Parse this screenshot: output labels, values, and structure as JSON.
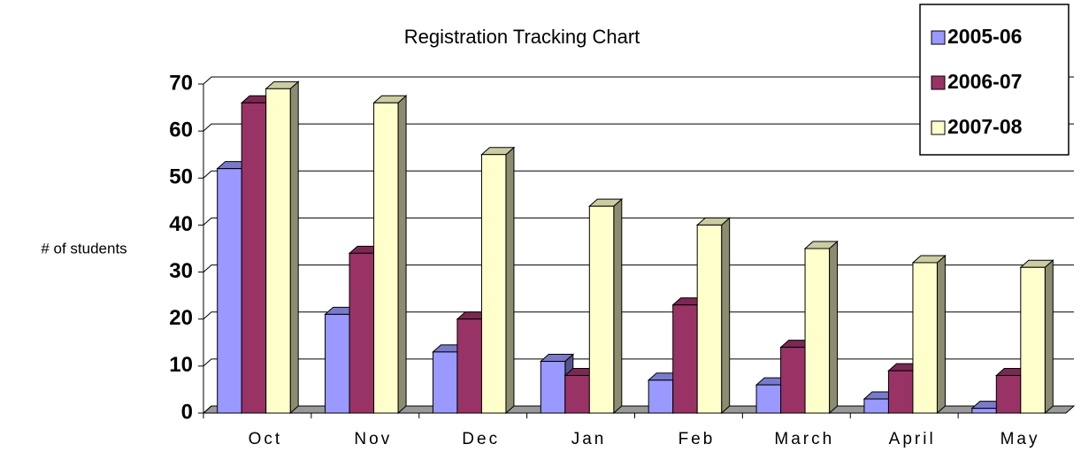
{
  "chart_data": {
    "type": "bar3d",
    "title": "Registration Tracking Chart",
    "y_label": "# of students",
    "categories": [
      "Oct",
      "Nov",
      "Dec",
      "Jan",
      "Feb",
      "March",
      "April",
      "May"
    ],
    "series": [
      {
        "name": "2005-06",
        "color": "#9999ff",
        "values": [
          52,
          21,
          13,
          11,
          7,
          6,
          3,
          1
        ]
      },
      {
        "name": "2006-07",
        "color": "#993366",
        "values": [
          66,
          34,
          20,
          8,
          23,
          14,
          9,
          8
        ]
      },
      {
        "name": "2007-08",
        "color": "#ffffcc",
        "values": [
          69,
          66,
          55,
          44,
          40,
          35,
          32,
          31
        ]
      }
    ],
    "ylim": [
      0,
      70
    ],
    "yticks": [
      0,
      10,
      20,
      30,
      40,
      50,
      60,
      70
    ],
    "grid": true,
    "legend": "top-right"
  }
}
